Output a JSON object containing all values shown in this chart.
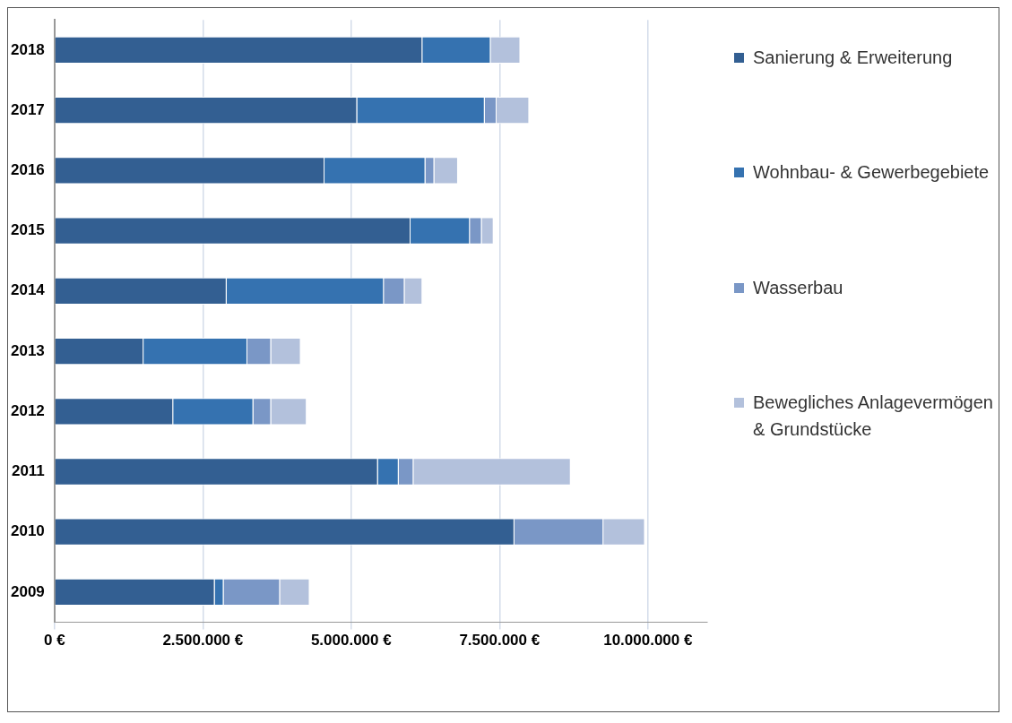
{
  "chart_data": {
    "type": "bar",
    "orientation": "horizontal",
    "stacked": true,
    "categories": [
      "2018",
      "2017",
      "2016",
      "2015",
      "2014",
      "2013",
      "2012",
      "2011",
      "2010",
      "2009"
    ],
    "series": [
      {
        "name": "Sanierung & Erweiterung",
        "color": "#335f92",
        "values": [
          6200000,
          5100000,
          4550000,
          6000000,
          2900000,
          1500000,
          2000000,
          5450000,
          7750000,
          2700000
        ]
      },
      {
        "name": "Wohnbau- & Gewerbegebiete",
        "color": "#3572b0",
        "values": [
          1150000,
          2150000,
          1700000,
          1000000,
          2650000,
          1750000,
          1350000,
          350000,
          0,
          150000
        ]
      },
      {
        "name": "Wasserbau",
        "color": "#7a97c6",
        "values": [
          0,
          200000,
          150000,
          200000,
          350000,
          400000,
          300000,
          250000,
          1500000,
          950000
        ]
      },
      {
        "name": "Bewegliches Anlagevermögen & Grundstücke",
        "color": "#b3c1dc",
        "values": [
          500000,
          550000,
          400000,
          200000,
          300000,
          500000,
          600000,
          2650000,
          700000,
          500000
        ]
      }
    ],
    "xlim": [
      0,
      11000000
    ],
    "xticks": [
      {
        "value": 0,
        "label": "0 €"
      },
      {
        "value": 2500000,
        "label": "2.500.000 €"
      },
      {
        "value": 5000000,
        "label": "5.000.000 €"
      },
      {
        "value": 7500000,
        "label": "7.500.000 €"
      },
      {
        "value": 10000000,
        "label": "10.000.000 €"
      }
    ],
    "grid": "x",
    "legend": "right"
  }
}
